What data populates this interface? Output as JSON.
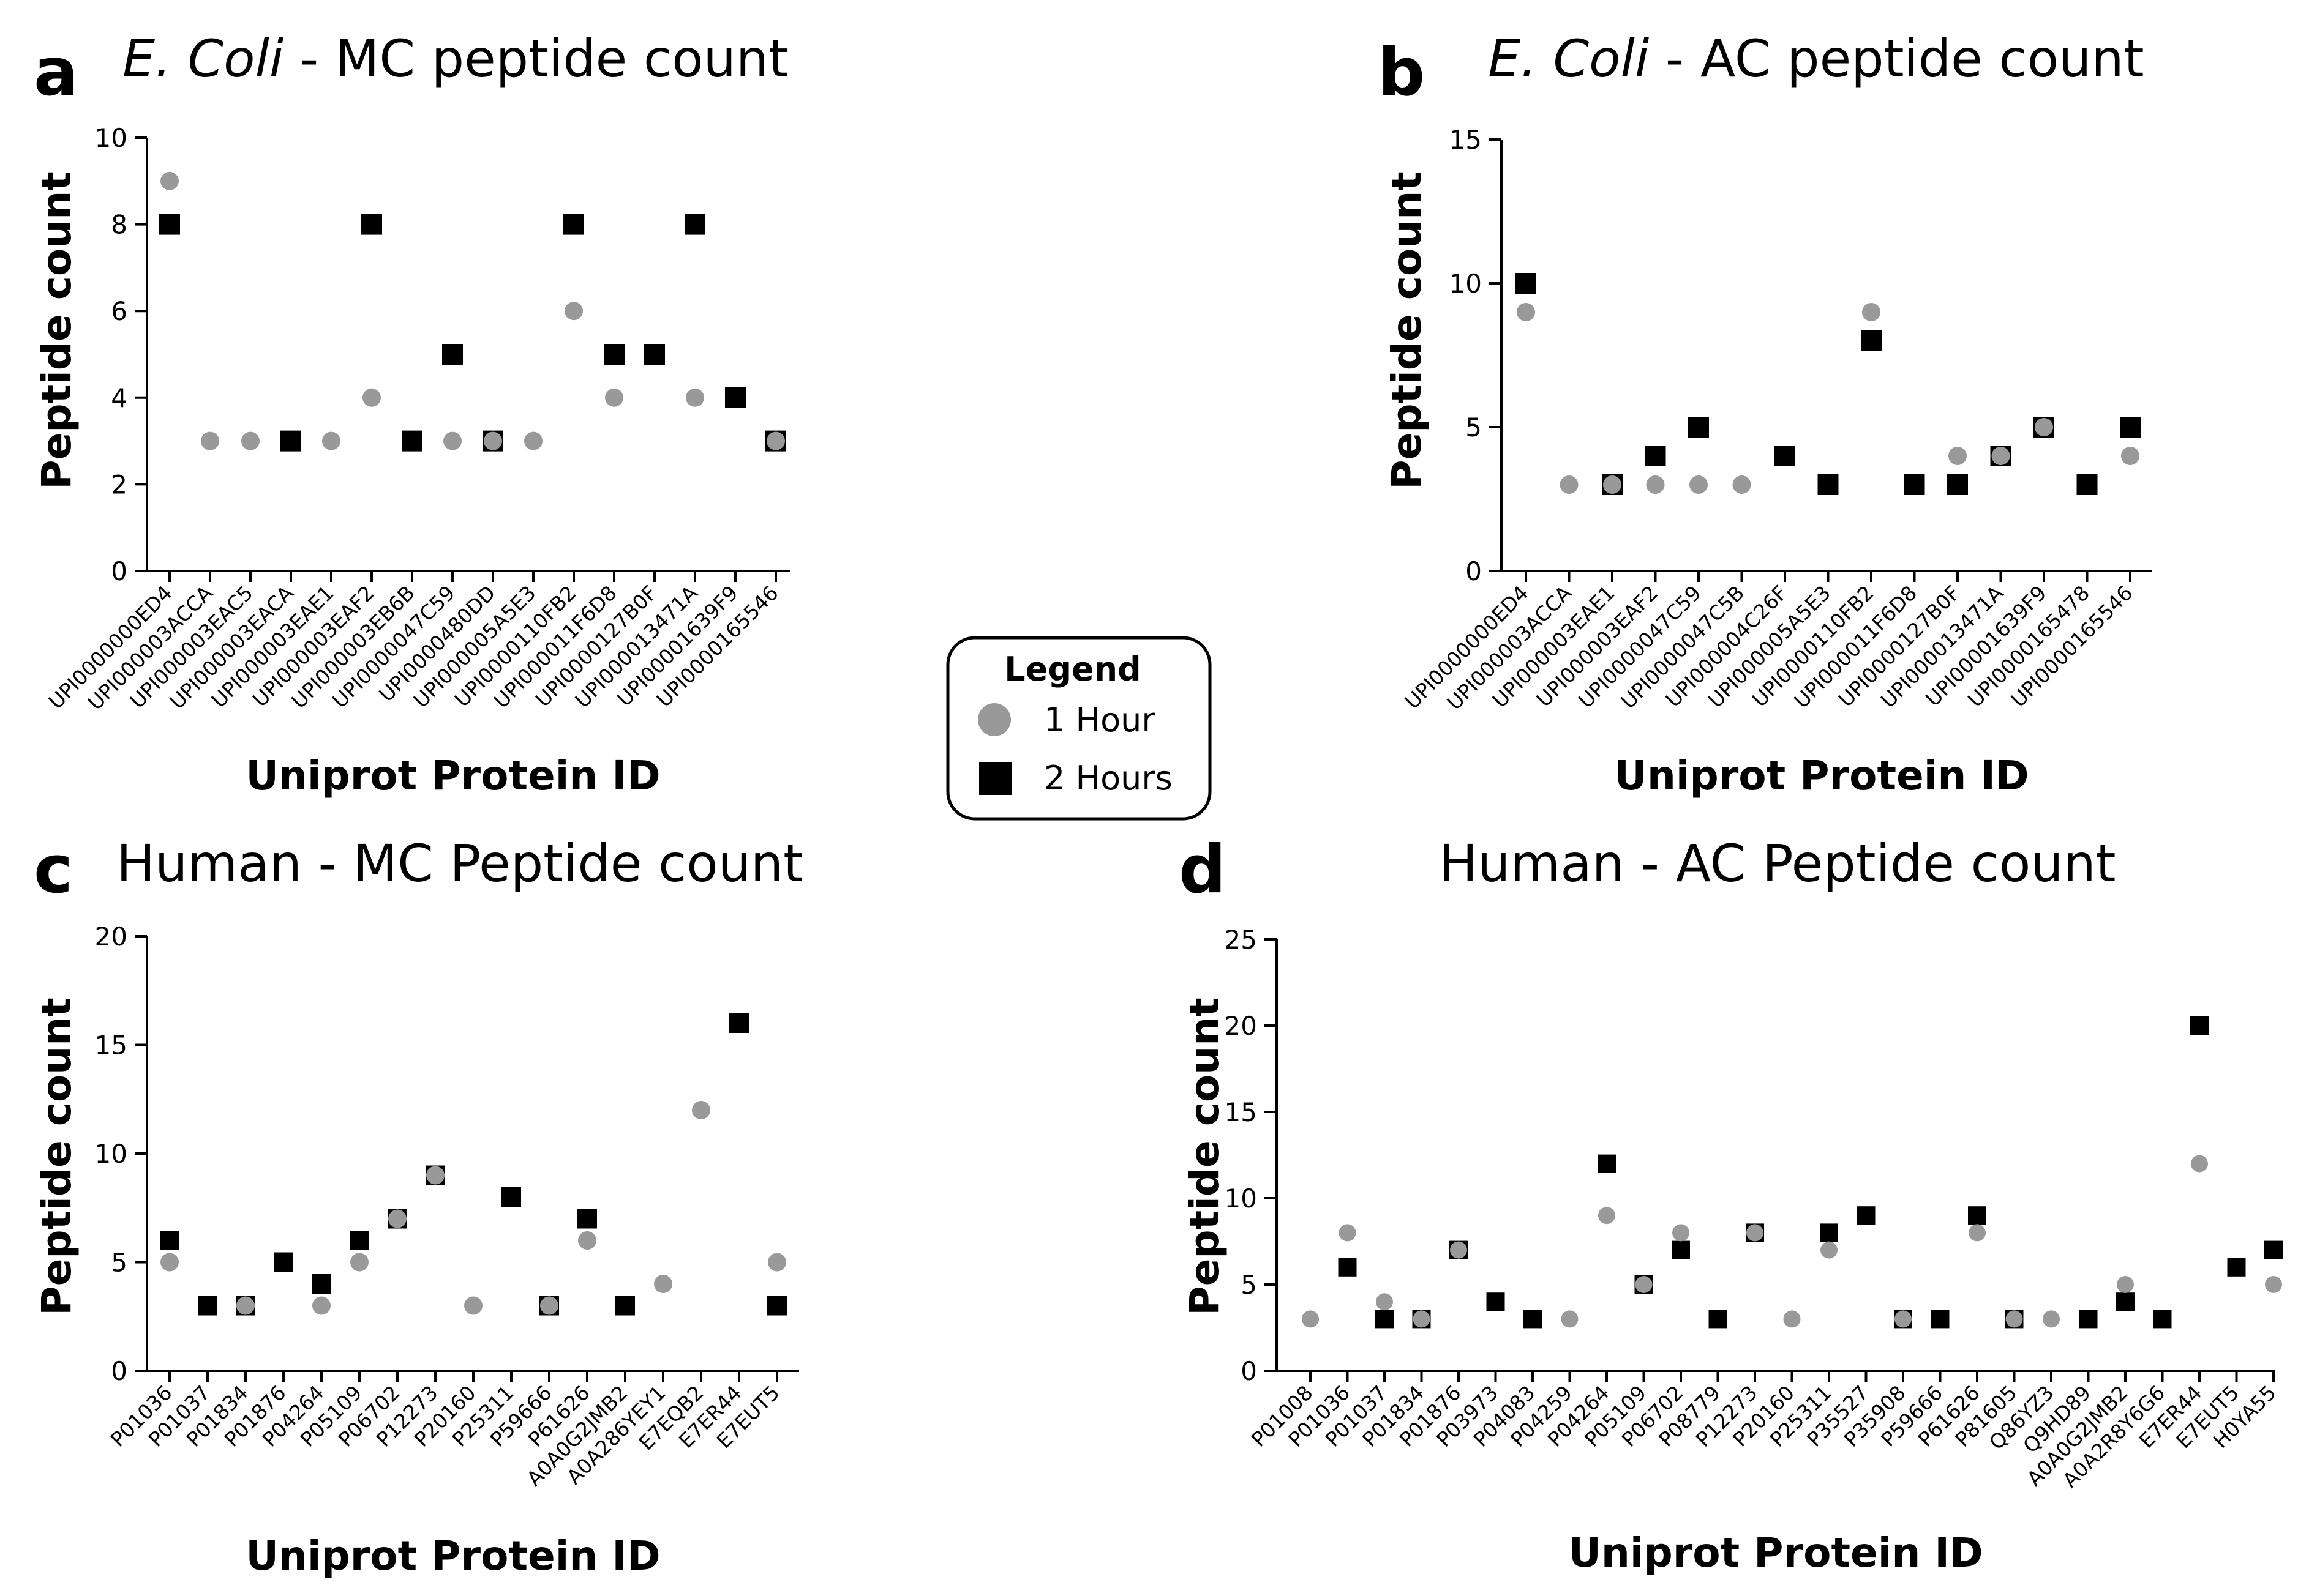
{
  "colors": {
    "one_hour": "#999999",
    "two_hours": "#000000",
    "axis": "#000000"
  },
  "legend": {
    "title": "Legend",
    "items": [
      {
        "label": "1 Hour",
        "marker": "circle",
        "color": "#999999"
      },
      {
        "label": "2 Hours",
        "marker": "square",
        "color": "#000000"
      }
    ]
  },
  "chart_data": [
    {
      "panel": "a",
      "type": "scatter",
      "title_italic": "E. Coli",
      "title_rest": " - MC peptide count",
      "xlabel": "Uniprot Protein ID",
      "ylabel": "Peptide count",
      "ylim": [
        0,
        10
      ],
      "yticks": [
        0,
        2,
        4,
        6,
        8,
        10
      ],
      "categories": [
        "UPI0000000ED4",
        "UPI000003ACCA",
        "UPI000003EAC5",
        "UPI000003EACA",
        "UPI000003EAE1",
        "UPI000003EAF2",
        "UPI000003EB6B",
        "UPI0000047C59",
        "UPI0000480DD",
        "UPI000005A5E3",
        "UPI0000110FB2",
        "UPI000011F6D8",
        "UPI0000127B0F",
        "UPI000013471A",
        "UPI00001639F9",
        "UPI0000165546"
      ],
      "series": [
        {
          "name": "1 Hour",
          "values": [
            9,
            3,
            3,
            null,
            3,
            4,
            null,
            3,
            3,
            3,
            6,
            4,
            null,
            4,
            null,
            3
          ]
        },
        {
          "name": "2 Hours",
          "values": [
            8,
            null,
            null,
            3,
            null,
            8,
            3,
            5,
            3,
            null,
            8,
            5,
            5,
            8,
            4,
            3
          ]
        }
      ]
    },
    {
      "panel": "b",
      "type": "scatter",
      "title_italic": "E. Coli",
      "title_rest": " - AC peptide count",
      "xlabel": "Uniprot Protein ID",
      "ylabel": "Peptide count",
      "ylim": [
        0,
        15
      ],
      "yticks": [
        0,
        5,
        10,
        15
      ],
      "categories": [
        "UPI0000000ED4",
        "UPI000003ACCA",
        "UPI000003EAE1",
        "UPI000003EAF2",
        "UPI0000047C59",
        "UPI0000047C5B",
        "UPI000004C26F",
        "UPI000005A5E3",
        "UPI0000110FB2",
        "UPI000011F6D8",
        "UPI0000127B0F",
        "UPI000013471A",
        "UPI00001639F9",
        "UPI0000165478",
        "UPI0000165546"
      ],
      "series": [
        {
          "name": "1 Hour",
          "values": [
            9,
            3,
            3,
            3,
            3,
            3,
            null,
            null,
            9,
            null,
            4,
            4,
            5,
            null,
            4
          ]
        },
        {
          "name": "2 Hours",
          "values": [
            10,
            null,
            3,
            4,
            5,
            null,
            4,
            3,
            8,
            3,
            3,
            4,
            5,
            3,
            5
          ]
        }
      ]
    },
    {
      "panel": "c",
      "type": "scatter",
      "title_italic": "",
      "title_rest": "Human - MC Peptide count",
      "xlabel": "Uniprot Protein ID",
      "ylabel": "Peptide count",
      "ylim": [
        0,
        20
      ],
      "yticks": [
        0,
        5,
        10,
        15,
        20
      ],
      "categories": [
        "P01036",
        "P01037",
        "P01834",
        "P01876",
        "P04264",
        "P05109",
        "P06702",
        "P12273",
        "P20160",
        "P25311",
        "P59666",
        "P61626",
        "A0A0G2JMB2",
        "A0A286YEY1",
        "E7EQB2",
        "E7ER44",
        "E7EUT5"
      ],
      "series": [
        {
          "name": "1 Hour",
          "values": [
            5,
            null,
            3,
            null,
            3,
            5,
            7,
            9,
            3,
            null,
            3,
            6,
            null,
            4,
            12,
            null,
            5
          ]
        },
        {
          "name": "2 Hours",
          "values": [
            6,
            3,
            3,
            5,
            4,
            6,
            7,
            9,
            null,
            8,
            3,
            7,
            3,
            null,
            null,
            16,
            3
          ]
        }
      ]
    },
    {
      "panel": "d",
      "type": "scatter",
      "title_italic": "",
      "title_rest": "Human - AC Peptide count",
      "xlabel": "Uniprot Protein ID",
      "ylabel": "Peptide count",
      "ylim": [
        0,
        25
      ],
      "yticks": [
        0,
        5,
        10,
        15,
        20,
        25
      ],
      "categories": [
        "P01008",
        "P01036",
        "P01037",
        "P01834",
        "P01876",
        "P03973",
        "P04083",
        "P04259",
        "P04264",
        "P05109",
        "P06702",
        "P08779",
        "P12273",
        "P20160",
        "P25311",
        "P35527",
        "P35908",
        "P59666",
        "P61626",
        "P81605",
        "Q86YZ3",
        "Q9HD89",
        "A0A0G2JMB2",
        "A0A2R8Y6G6",
        "E7ER44",
        "E7EUT5",
        "H0YA55"
      ],
      "series": [
        {
          "name": "1 Hour",
          "values": [
            3,
            8,
            4,
            3,
            7,
            null,
            null,
            3,
            9,
            5,
            8,
            null,
            8,
            3,
            7,
            null,
            3,
            null,
            8,
            3,
            3,
            null,
            5,
            null,
            12,
            null,
            5
          ]
        },
        {
          "name": "2 Hours",
          "values": [
            null,
            6,
            3,
            3,
            7,
            4,
            3,
            null,
            12,
            5,
            7,
            3,
            8,
            null,
            8,
            9,
            3,
            3,
            9,
            3,
            null,
            3,
            4,
            3,
            20,
            6,
            7
          ]
        }
      ]
    }
  ]
}
